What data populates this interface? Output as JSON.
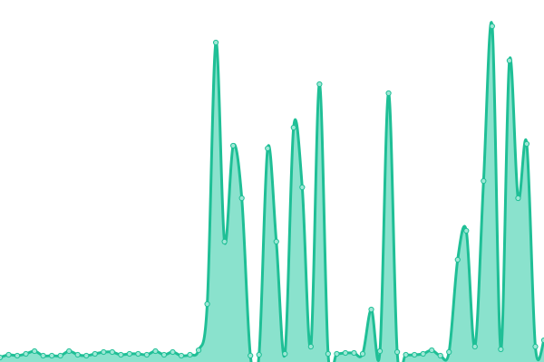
{
  "chart_data": {
    "type": "area",
    "values": [
      5,
      8,
      7,
      9,
      12,
      7,
      7,
      7,
      12,
      8,
      7,
      9,
      11,
      11,
      8,
      9,
      9,
      8,
      12,
      8,
      11,
      7,
      8,
      13,
      64,
      353,
      133,
      239,
      181,
      7,
      8,
      236,
      133,
      9,
      259,
      193,
      17,
      307,
      9,
      9,
      10,
      10,
      9,
      58,
      12,
      297,
      11,
      8,
      8,
      9,
      13,
      7,
      11,
      113,
      145,
      17,
      200,
      371,
      14,
      333,
      181,
      241,
      17,
      24
    ],
    "ylim": [
      0,
      400
    ],
    "line_color": "#1fbf96",
    "fill_color": "#8ae2cd",
    "marker_fill": "#9ee8d6"
  }
}
